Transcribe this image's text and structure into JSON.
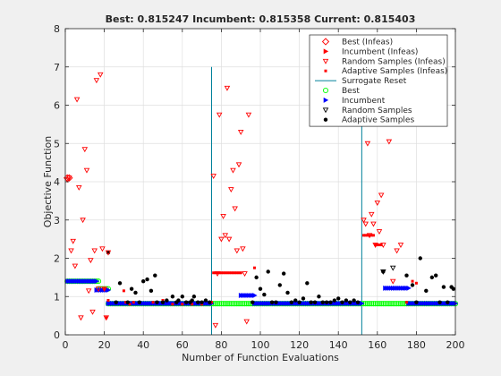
{
  "chart_data": {
    "type": "scatter",
    "title": "Best: 0.815247 Incumbent: 0.815358 Current: 0.815403",
    "xlabel": "Number of Function Evaluations",
    "ylabel": "Objective Function",
    "xlim": [
      0,
      200
    ],
    "ylim": [
      0,
      8
    ],
    "xticks": [
      "0",
      "20",
      "40",
      "60",
      "80",
      "100",
      "120",
      "140",
      "160",
      "180",
      "200"
    ],
    "yticks": [
      "0",
      "1",
      "2",
      "3",
      "4",
      "5",
      "6",
      "7",
      "8"
    ],
    "grid": true,
    "legend_position": "top-right",
    "legend": [
      "Best (Infeas)",
      "Incumbent (Infeas)",
      "Random Samples (Infeas)",
      "Adaptive Samples (Infeas)",
      "Surrogate Reset",
      "Best",
      "Incumbent",
      "Random Samples",
      "Adaptive Samples"
    ],
    "colors": {
      "infeasible": "#ff0000",
      "best": "#00ff00",
      "incumbent": "#0000ff",
      "random": "#000000",
      "adaptive": "#000000",
      "reset": "#00809a"
    },
    "surrogate_resets": [
      75,
      152
    ],
    "series": [
      {
        "name": "Best (Infeas)",
        "x": [
          1,
          2
        ],
        "y": [
          4.1,
          4.1
        ]
      },
      {
        "name": "Incumbent (Infeas)",
        "x": [],
        "y": []
      },
      {
        "name": "Random Samples (Infeas)",
        "x": [
          1,
          2,
          3,
          4,
          5,
          6,
          7,
          8,
          9,
          10,
          11,
          12,
          13,
          14,
          15,
          16,
          17,
          18,
          19,
          20,
          21,
          22,
          76,
          77,
          78,
          79,
          80,
          81,
          82,
          83,
          84,
          85,
          86,
          87,
          88,
          89,
          90,
          91,
          92,
          93,
          94,
          153,
          154,
          155,
          156,
          157,
          158,
          159,
          160,
          161,
          162,
          163,
          166,
          168,
          170,
          172
        ],
        "y": [
          4.05,
          4.1,
          2.2,
          2.45,
          1.8,
          6.15,
          3.85,
          0.45,
          3.0,
          4.85,
          4.3,
          1.15,
          1.95,
          0.6,
          2.2,
          6.65,
          1.2,
          6.8,
          2.25,
          1.2,
          0.45,
          2.15,
          4.15,
          0.25,
          1.6,
          5.75,
          2.5,
          3.1,
          2.6,
          6.45,
          2.5,
          3.8,
          4.3,
          3.3,
          2.2,
          4.45,
          5.3,
          2.25,
          1.6,
          0.35,
          5.75,
          3.0,
          2.9,
          5.0,
          2.6,
          3.15,
          2.9,
          2.35,
          3.45,
          2.7,
          3.65,
          2.35,
          5.05,
          1.4,
          2.2,
          2.35
        ]
      },
      {
        "name": "Adaptive Samples (Infeas)",
        "x": [
          20,
          21,
          22,
          26,
          30,
          31,
          33,
          35,
          45,
          50,
          55,
          57,
          60,
          62,
          65,
          70,
          75,
          76,
          77,
          78,
          79,
          80,
          81,
          82,
          83,
          84,
          85,
          86,
          87,
          88,
          89,
          90,
          97,
          153,
          154,
          155,
          156,
          157,
          158,
          159,
          160,
          161,
          162,
          175,
          178,
          180
        ],
        "y": [
          1.2,
          0.45,
          0.9,
          0.85,
          1.15,
          0.85,
          0.8,
          0.85,
          0.85,
          0.9,
          0.8,
          0.85,
          0.8,
          0.85,
          0.8,
          0.8,
          0.85,
          1.62,
          1.62,
          1.62,
          1.62,
          1.62,
          1.62,
          1.62,
          1.62,
          1.62,
          1.62,
          1.62,
          1.62,
          1.62,
          1.62,
          1.62,
          1.75,
          2.6,
          2.6,
          2.6,
          2.6,
          2.6,
          2.6,
          2.35,
          2.35,
          2.35,
          2.35,
          0.85,
          1.4,
          1.35
        ]
      },
      {
        "name": "Best",
        "x": [],
        "y": [],
        "segments": [
          {
            "x_from": 1,
            "x_to": 17,
            "y": 1.4
          },
          {
            "x_from": 17,
            "x_to": 22,
            "y": 1.2
          },
          {
            "x_from": 22,
            "x_to": 200,
            "y": 0.815
          }
        ]
      },
      {
        "name": "Incumbent",
        "x": [],
        "y": [],
        "segments": [
          {
            "x_from": 1,
            "x_to": 16,
            "y": 1.4
          },
          {
            "x_from": 16,
            "x_to": 22,
            "y": 1.17
          },
          {
            "x_from": 22,
            "x_to": 75,
            "y": 0.82
          },
          {
            "x_from": 90,
            "x_to": 97,
            "y": 1.03
          },
          {
            "x_from": 97,
            "x_to": 152,
            "y": 0.82
          },
          {
            "x_from": 164,
            "x_to": 176,
            "y": 1.22
          },
          {
            "x_from": 176,
            "x_to": 200,
            "y": 0.82
          }
        ]
      },
      {
        "name": "Random Samples",
        "x": [
          163,
          168
        ],
        "y": [
          1.65,
          1.75
        ]
      },
      {
        "name": "Adaptive Samples",
        "x": [
          22,
          26,
          28,
          32,
          34,
          36,
          38,
          40,
          42,
          44,
          46,
          47,
          50,
          52,
          55,
          57,
          58,
          60,
          62,
          64,
          65,
          66,
          68,
          70,
          72,
          74,
          96,
          98,
          100,
          102,
          104,
          106,
          108,
          110,
          112,
          114,
          116,
          118,
          120,
          122,
          124,
          126,
          128,
          130,
          132,
          134,
          136,
          138,
          140,
          142,
          144,
          146,
          148,
          150,
          163,
          175,
          178,
          180,
          182,
          185,
          188,
          190,
          192,
          194,
          196,
          198,
          199
        ],
        "y": [
          2.15,
          0.85,
          1.35,
          0.85,
          1.2,
          1.1,
          0.85,
          1.4,
          1.45,
          1.15,
          1.55,
          0.85,
          0.85,
          0.9,
          1.0,
          0.85,
          0.9,
          1.0,
          0.85,
          0.85,
          0.9,
          1.0,
          0.85,
          0.85,
          0.9,
          0.85,
          0.85,
          1.5,
          1.2,
          1.05,
          1.65,
          0.85,
          0.85,
          1.3,
          1.6,
          1.1,
          0.85,
          0.9,
          0.85,
          0.95,
          1.35,
          0.85,
          0.85,
          1.0,
          0.85,
          0.85,
          0.85,
          0.9,
          0.95,
          0.85,
          0.9,
          0.85,
          0.9,
          0.85,
          1.65,
          1.55,
          1.3,
          0.85,
          2.0,
          1.15,
          1.5,
          1.55,
          0.85,
          1.25,
          0.85,
          1.25,
          1.2
        ]
      }
    ]
  }
}
